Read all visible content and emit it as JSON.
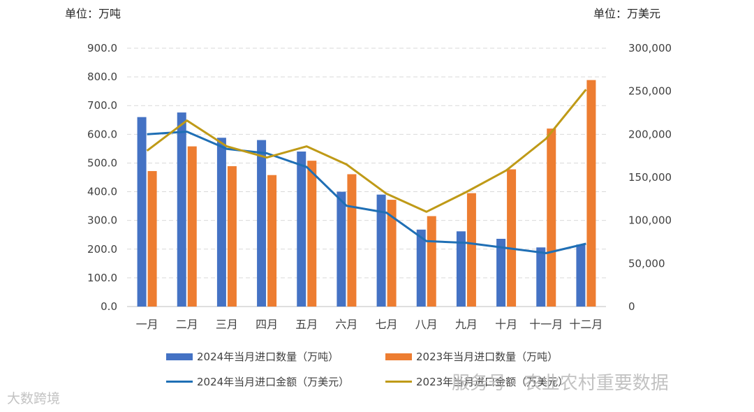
{
  "units": {
    "left": "单位：万吨",
    "right": "单位：万美元"
  },
  "chart_data": {
    "type": "bar",
    "categories": [
      "一月",
      "二月",
      "三月",
      "四月",
      "五月",
      "六月",
      "七月",
      "八月",
      "九月",
      "十月",
      "十一月",
      "十二月"
    ],
    "y_left": {
      "min": 0,
      "max": 900,
      "step": 100,
      "ticks": [
        "0.0",
        "100.0",
        "200.0",
        "300.0",
        "400.0",
        "500.0",
        "600.0",
        "700.0",
        "800.0",
        "900.0"
      ]
    },
    "y_right": {
      "min": 0,
      "max": 300000,
      "step": 50000,
      "ticks": [
        "0",
        "50,000",
        "100,000",
        "150,000",
        "200,000",
        "250,000",
        "300,000"
      ]
    },
    "bar_series": [
      {
        "name": "2024年当月进口数量（万吨）",
        "color": "#4472C4",
        "axis": "left",
        "values": [
          660,
          676,
          588,
          580,
          540,
          400,
          390,
          268,
          262,
          236,
          206,
          216
        ]
      },
      {
        "name": "2023年当月进口数量（万吨）",
        "color": "#ED7D31",
        "axis": "left",
        "values": [
          472,
          558,
          489,
          458,
          508,
          461,
          372,
          315,
          395,
          478,
          620,
          789
        ]
      }
    ],
    "line_series": [
      {
        "name": "2024年当月进口金额（万美元）",
        "color": "#1F6FB5",
        "axis": "right",
        "values": [
          200000,
          203000,
          183000,
          178000,
          162000,
          117000,
          109000,
          76000,
          74000,
          68000,
          62000,
          73000
        ]
      },
      {
        "name": "2023年当月进口金额（万美元）",
        "color": "#BF9A17",
        "axis": "right",
        "values": [
          181000,
          216000,
          186000,
          173000,
          186000,
          165000,
          131000,
          110000,
          133000,
          158000,
          195000,
          252000
        ]
      }
    ],
    "grid": true,
    "legend_position": "bottom"
  },
  "watermarks": {
    "left": "大数跨境",
    "right": "服务号 · 农业农村重要数据"
  }
}
